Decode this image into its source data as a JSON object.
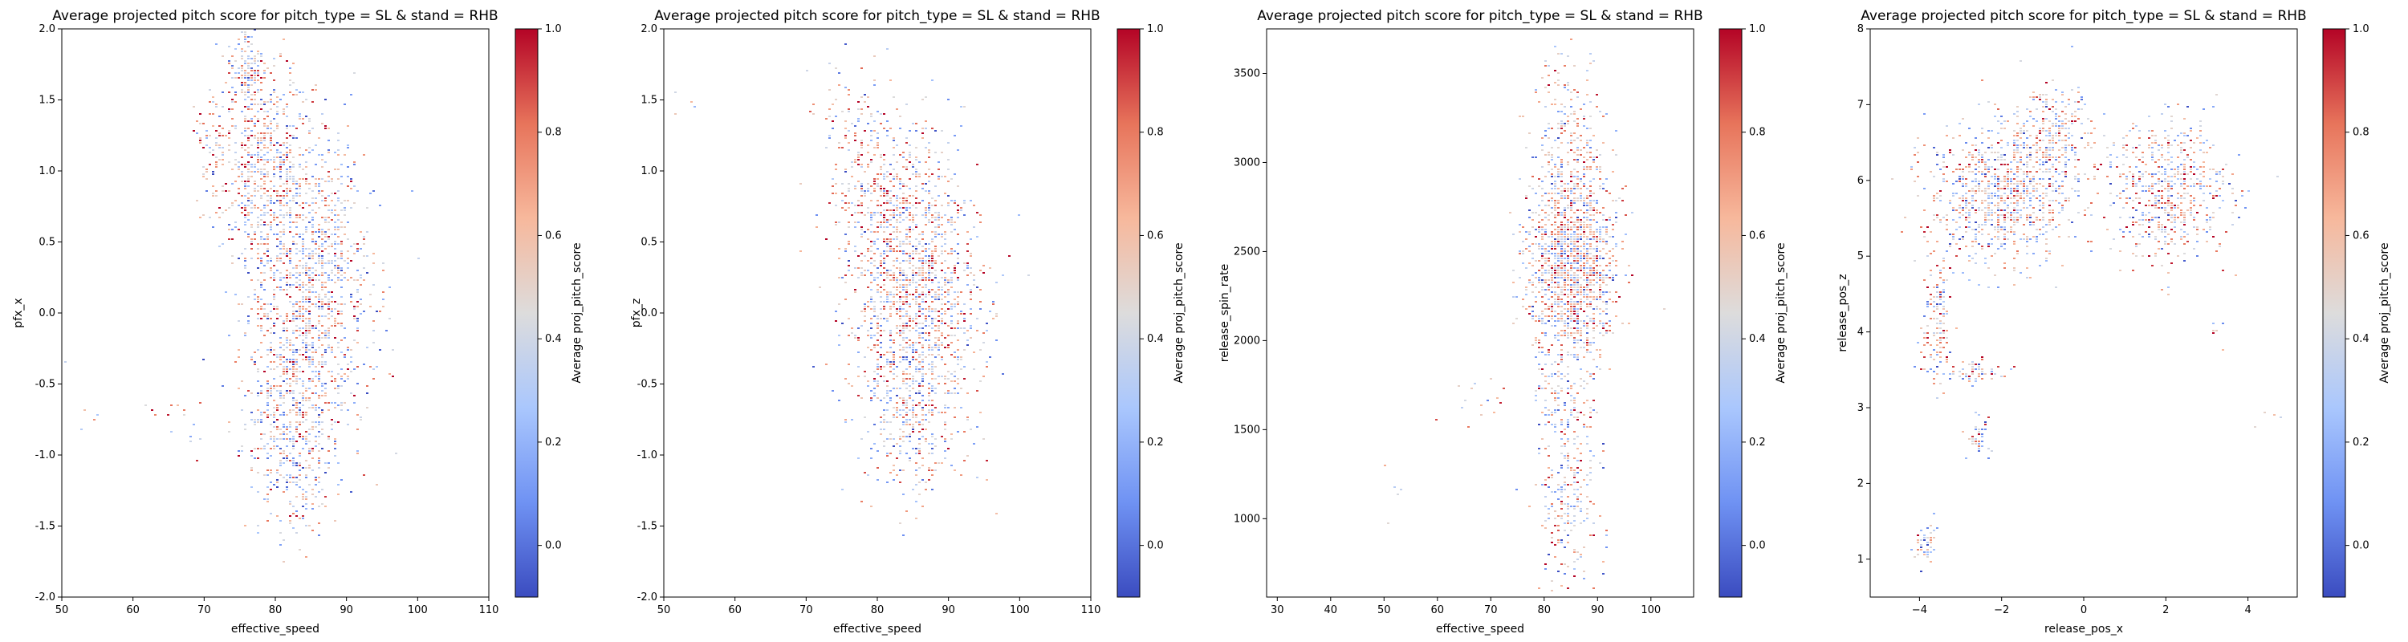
{
  "figure": {
    "background": "#ffffff",
    "colormap": "coolwarm",
    "colormap_stops": [
      "#3b4cc0",
      "#6f92f3",
      "#aac7fd",
      "#dddcdc",
      "#f7b89c",
      "#e7745b",
      "#b40426"
    ]
  },
  "chart_data": [
    {
      "type": "heatmap",
      "title": "Average projected pitch score for pitch_type = SL & stand = RHB",
      "xlabel": "effective_speed",
      "ylabel": "pfx_x",
      "xlim": [
        50,
        110
      ],
      "ylim": [
        -2.0,
        2.0
      ],
      "xticks": [
        "50",
        "60",
        "70",
        "80",
        "90",
        "100",
        "110"
      ],
      "yticks": [
        "-2.0",
        "-1.5",
        "-1.0",
        "-0.5",
        "0.0",
        "0.5",
        "1.0",
        "1.5",
        "2.0"
      ],
      "colorbar": {
        "label": "Average proj_pitch_score",
        "range": [
          -0.1,
          1.0
        ],
        "ticks": [
          "0.0",
          "0.2",
          "0.4",
          "0.6",
          "0.8",
          "1.0"
        ]
      },
      "clusters": [
        {
          "cx": 84,
          "cy": 0.2,
          "sx": 4.5,
          "sy": 0.55,
          "n": 1400,
          "mean": 0.45
        },
        {
          "cx": 78,
          "cy": 1.1,
          "sx": 3.0,
          "sy": 0.35,
          "n": 500,
          "mean": 0.5
        },
        {
          "cx": 82,
          "cy": -0.9,
          "sx": 3.0,
          "sy": 0.35,
          "n": 400,
          "mean": 0.45
        },
        {
          "cx": 76,
          "cy": 1.75,
          "sx": 1.5,
          "sy": 0.15,
          "n": 120,
          "mean": 0.5
        },
        {
          "cx": 71,
          "cy": 1.15,
          "sx": 1.2,
          "sy": 0.2,
          "n": 60,
          "mean": 0.6
        },
        {
          "cx": 66,
          "cy": -0.75,
          "sx": 1.5,
          "sy": 0.12,
          "n": 14,
          "mean": 0.5
        },
        {
          "cx": 53,
          "cy": -0.6,
          "sx": 1.5,
          "sy": 0.2,
          "n": 5,
          "mean": 0.55
        }
      ]
    },
    {
      "type": "heatmap",
      "title": "Average projected pitch score for pitch_type = SL & stand = RHB",
      "xlabel": "effective_speed",
      "ylabel": "pfx_z",
      "xlim": [
        50,
        110
      ],
      "ylim": [
        -2.0,
        2.0
      ],
      "xticks": [
        "50",
        "60",
        "70",
        "80",
        "90",
        "100",
        "110"
      ],
      "yticks": [
        "-2.0",
        "-1.5",
        "-1.0",
        "-0.5",
        "0.0",
        "0.5",
        "1.0",
        "1.5",
        "2.0"
      ],
      "colorbar": {
        "label": "Average proj_pitch_score",
        "range": [
          -0.1,
          1.0
        ],
        "ticks": [
          "0.0",
          "0.2",
          "0.4",
          "0.6",
          "0.8",
          "1.0"
        ]
      },
      "clusters": [
        {
          "cx": 85,
          "cy": 0.1,
          "sx": 4.5,
          "sy": 0.5,
          "n": 1500,
          "mean": 0.5
        },
        {
          "cx": 80,
          "cy": 0.9,
          "sx": 4.0,
          "sy": 0.35,
          "n": 300,
          "mean": 0.55
        },
        {
          "cx": 84,
          "cy": -0.9,
          "sx": 3.0,
          "sy": 0.25,
          "n": 150,
          "mean": 0.4
        },
        {
          "cx": 75,
          "cy": 1.4,
          "sx": 2.5,
          "sy": 0.15,
          "n": 40,
          "mean": 0.6
        },
        {
          "cx": 53,
          "cy": 1.48,
          "sx": 1.2,
          "sy": 0.05,
          "n": 4,
          "mean": 0.6
        }
      ]
    },
    {
      "type": "heatmap",
      "title": "Average projected pitch score for pitch_type = SL & stand = RHB",
      "xlabel": "effective_speed",
      "ylabel": "release_spin_rate",
      "xlim": [
        28,
        108
      ],
      "ylim": [
        560,
        3750
      ],
      "xticks": [
        "30",
        "40",
        "50",
        "60",
        "70",
        "80",
        "90",
        "100"
      ],
      "ytick_values": [
        1000,
        1500,
        2000,
        2500,
        3000,
        3500
      ],
      "yticks": [
        "1000",
        "1500",
        "2000",
        "2500",
        "3000",
        "3500"
      ],
      "colorbar": {
        "label": "Average proj_pitch_score",
        "range": [
          -0.1,
          1.0
        ],
        "ticks": [
          "0.0",
          "0.2",
          "0.4",
          "0.6",
          "0.8",
          "1.0"
        ]
      },
      "clusters": [
        {
          "cx": 85,
          "cy": 2450,
          "sx": 4.0,
          "sy": 300,
          "n": 1500,
          "mean": 0.5
        },
        {
          "cx": 84,
          "cy": 3200,
          "sx": 3.5,
          "sy": 200,
          "n": 150,
          "mean": 0.5
        },
        {
          "cx": 84,
          "cy": 1500,
          "sx": 3.0,
          "sy": 250,
          "n": 200,
          "mean": 0.45
        },
        {
          "cx": 84,
          "cy": 950,
          "sx": 3.0,
          "sy": 180,
          "n": 120,
          "mean": 0.5
        },
        {
          "cx": 68,
          "cy": 1650,
          "sx": 3.0,
          "sy": 100,
          "n": 15,
          "mean": 0.5
        },
        {
          "cx": 52,
          "cy": 1120,
          "sx": 2.0,
          "sy": 80,
          "n": 5,
          "mean": 0.6
        }
      ]
    },
    {
      "type": "heatmap",
      "title": "Average projected pitch score for pitch_type = SL & stand = RHB",
      "xlabel": "release_pos_x",
      "ylabel": "release_pos_z",
      "xlim": [
        -5.2,
        5.2
      ],
      "ylim": [
        0.5,
        8.0
      ],
      "xtick_values": [
        -4,
        -2,
        0,
        2,
        4
      ],
      "xticks": [
        "−4",
        "−2",
        "0",
        "2",
        "4"
      ],
      "ytick_values": [
        1,
        2,
        3,
        4,
        5,
        6,
        7,
        8
      ],
      "yticks": [
        "1",
        "2",
        "3",
        "4",
        "5",
        "6",
        "7",
        "8"
      ],
      "colorbar": {
        "label": "Average proj_pitch_score",
        "range": [
          -0.1,
          1.0
        ],
        "ticks": [
          "0.0",
          "0.2",
          "0.4",
          "0.6",
          "0.8",
          "1.0"
        ]
      },
      "clusters": [
        {
          "cx": -2.0,
          "cy": 5.85,
          "sx": 0.9,
          "sy": 0.45,
          "n": 900,
          "mean": 0.45
        },
        {
          "cx": -0.8,
          "cy": 6.6,
          "sx": 0.5,
          "sy": 0.35,
          "n": 250,
          "mean": 0.5
        },
        {
          "cx": 2.0,
          "cy": 5.9,
          "sx": 0.75,
          "sy": 0.45,
          "n": 600,
          "mean": 0.5
        },
        {
          "cx": -3.6,
          "cy": 4.2,
          "sx": 0.2,
          "sy": 0.5,
          "n": 150,
          "mean": 0.5
        },
        {
          "cx": -2.6,
          "cy": 3.5,
          "sx": 0.3,
          "sy": 0.08,
          "n": 60,
          "mean": 0.45
        },
        {
          "cx": -2.6,
          "cy": 2.6,
          "sx": 0.15,
          "sy": 0.15,
          "n": 40,
          "mean": 0.45
        },
        {
          "cx": -3.9,
          "cy": 1.2,
          "sx": 0.15,
          "sy": 0.15,
          "n": 50,
          "mean": 0.4
        },
        {
          "cx": 4.3,
          "cy": 2.8,
          "sx": 0.25,
          "sy": 0.08,
          "n": 4,
          "mean": 0.6
        },
        {
          "cx": 3.2,
          "cy": 4.0,
          "sx": 0.15,
          "sy": 0.1,
          "n": 6,
          "mean": 0.5
        }
      ]
    }
  ]
}
